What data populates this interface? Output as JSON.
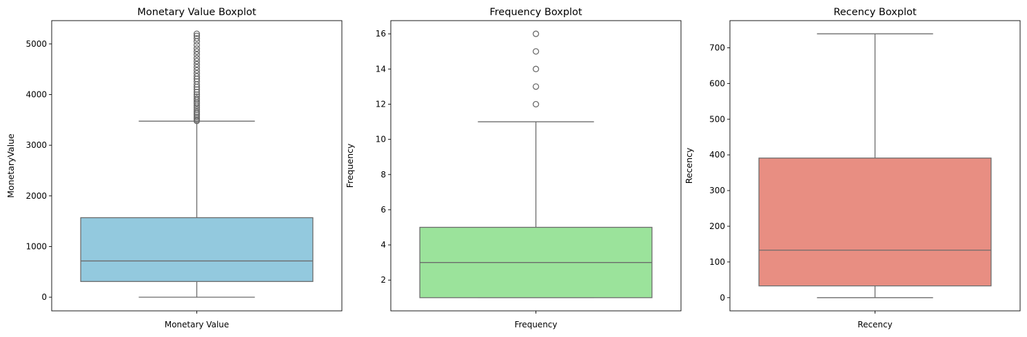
{
  "chart_data": [
    {
      "type": "boxplot",
      "title": "Monetary Value Boxplot",
      "xlabel": "",
      "ylabel": "MonetaryValue",
      "category": "Monetary Value",
      "color": "#93c9de",
      "ylim": [
        -270,
        5460
      ],
      "yticks": [
        0,
        1000,
        2000,
        3000,
        4000,
        5000
      ],
      "box": {
        "whisker_low": 0,
        "q1": 310,
        "median": 715,
        "q3": 1570,
        "whisker_high": 3475
      },
      "outliers": [
        3480,
        3500,
        3530,
        3560,
        3600,
        3630,
        3660,
        3700,
        3740,
        3780,
        3820,
        3850,
        3890,
        3920,
        3960,
        4000,
        4050,
        4100,
        4150,
        4200,
        4260,
        4310,
        4360,
        4420,
        4480,
        4540,
        4600,
        4660,
        4720,
        4790,
        4850,
        4910,
        4980,
        5050,
        5110,
        5160,
        5200
      ]
    },
    {
      "type": "boxplot",
      "title": "Frequency Boxplot",
      "xlabel": "",
      "ylabel": "Frequency",
      "category": "Frequency",
      "color": "#9be39b",
      "ylim": [
        0.25,
        16.75
      ],
      "yticks": [
        2,
        4,
        6,
        8,
        10,
        12,
        14,
        16
      ],
      "box": {
        "whisker_low": 1,
        "q1": 1,
        "median": 3,
        "q3": 5,
        "whisker_high": 11
      },
      "outliers": [
        12,
        13,
        14,
        15,
        16
      ]
    },
    {
      "type": "boxplot",
      "title": "Recency Boxplot",
      "xlabel": "",
      "ylabel": "Recency",
      "category": "Recency",
      "color": "#e88e82",
      "ylim": [
        -37,
        776
      ],
      "yticks": [
        0,
        100,
        200,
        300,
        400,
        500,
        600,
        700
      ],
      "box": {
        "whisker_low": 0,
        "q1": 33,
        "median": 133,
        "q3": 391,
        "whisker_high": 739
      },
      "outliers": []
    }
  ]
}
